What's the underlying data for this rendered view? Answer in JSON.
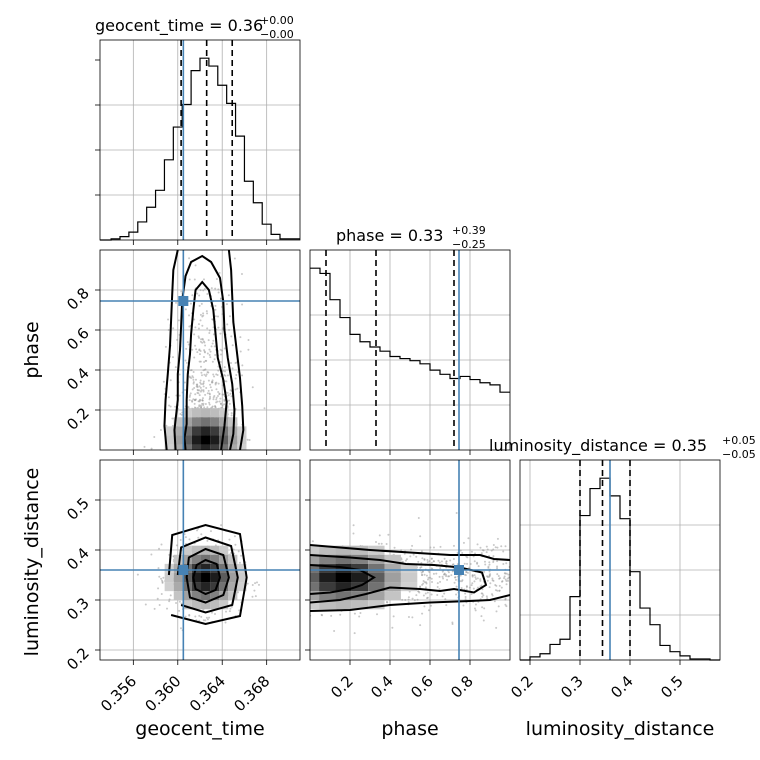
{
  "chart_data": {
    "type": "corner",
    "parameters": [
      "geocent_time",
      "phase",
      "luminosity_distance"
    ],
    "truths": {
      "geocent_time": 0.3605,
      "phase": 0.745,
      "luminosity_distance": 0.36
    },
    "colors": {
      "truth": "#4682b4",
      "hist": "#000000",
      "grid": "#b0b0b0"
    },
    "grid": true,
    "diagonal": [
      {
        "param": "geocent_time",
        "title_prefix": "geocent_time = ",
        "median": "0.36",
        "plus": "+0.00",
        "minus": "−0.00",
        "quantiles": [
          0.3603,
          0.3626,
          0.3649
        ],
        "range": [
          0.353,
          0.371
        ],
        "ticks": [
          0.356,
          0.36,
          0.364,
          0.368
        ],
        "tick_labels": [
          "0.356",
          "0.360",
          "0.364",
          "0.368"
        ],
        "bin_edges": [
          0.353,
          0.354,
          0.3548,
          0.3556,
          0.3564,
          0.3572,
          0.358,
          0.3588,
          0.3596,
          0.3604,
          0.3612,
          0.362,
          0.3628,
          0.3636,
          0.3644,
          0.3652,
          0.366,
          0.3668,
          0.3676,
          0.3684,
          0.3692,
          0.371
        ],
        "counts": [
          0,
          1,
          3,
          7,
          16,
          29,
          44,
          71,
          100,
          120,
          150,
          161,
          154,
          137,
          121,
          92,
          52,
          33,
          14,
          5,
          1
        ]
      },
      {
        "param": "phase",
        "title_prefix": "phase = ",
        "median": "0.33",
        "plus": "+0.39",
        "minus": "−0.25",
        "quantiles": [
          0.08,
          0.33,
          0.72
        ],
        "range": [
          0.0,
          1.0
        ],
        "ticks": [
          0.2,
          0.4,
          0.6,
          0.8
        ],
        "tick_labels": [
          "0.2",
          "0.4",
          "0.6",
          "0.8"
        ],
        "bin_edges": [
          0.0,
          0.05,
          0.1,
          0.15,
          0.2,
          0.25,
          0.3,
          0.35,
          0.4,
          0.45,
          0.5,
          0.55,
          0.6,
          0.65,
          0.7,
          0.75,
          0.8,
          0.85,
          0.9,
          0.95,
          1.0
        ],
        "counts": [
          173,
          168,
          143,
          126,
          110,
          103,
          98,
          94,
          89,
          87,
          85,
          82,
          76,
          72,
          68,
          70,
          67,
          64,
          62,
          55
        ]
      },
      {
        "param": "luminosity_distance",
        "title_prefix": "luminosity_distance = ",
        "median": "0.35",
        "plus": "+0.05",
        "minus": "−0.05",
        "quantiles": [
          0.3,
          0.345,
          0.4
        ],
        "range": [
          0.18,
          0.58
        ],
        "ticks": [
          0.2,
          0.3,
          0.4,
          0.5
        ],
        "tick_labels": [
          "0.2",
          "0.3",
          "0.4",
          "0.5"
        ],
        "bin_edges": [
          0.18,
          0.2,
          0.22,
          0.24,
          0.26,
          0.28,
          0.3,
          0.32,
          0.34,
          0.36,
          0.38,
          0.4,
          0.42,
          0.44,
          0.46,
          0.48,
          0.5,
          0.52,
          0.54,
          0.56,
          0.58
        ],
        "counts": [
          0,
          3,
          6,
          15,
          20,
          61,
          139,
          165,
          175,
          158,
          136,
          85,
          50,
          34,
          14,
          8,
          4,
          1,
          1,
          0
        ]
      }
    ],
    "off_diagonal": [
      {
        "x": "geocent_time",
        "y": "phase",
        "y_range": [
          0.0,
          1.0
        ],
        "y_ticks": [
          0.2,
          0.4,
          0.6,
          0.8
        ],
        "y_tick_labels": [
          "0.2",
          "0.4",
          "0.6",
          "0.8"
        ],
        "density_center": [
          0.3625,
          0.05
        ],
        "contours": [
          [
            [
              0.3607,
              0.0
            ],
            [
              0.3606,
              0.06
            ],
            [
              0.3608,
              0.13
            ],
            [
              0.3608,
              0.25
            ],
            [
              0.3609,
              0.38
            ],
            [
              0.3611,
              0.48
            ],
            [
              0.3612,
              0.58
            ],
            [
              0.3614,
              0.7
            ],
            [
              0.3616,
              0.8
            ],
            [
              0.3622,
              0.84
            ],
            [
              0.3628,
              0.8
            ],
            [
              0.3632,
              0.7
            ],
            [
              0.3634,
              0.58
            ],
            [
              0.3636,
              0.46
            ],
            [
              0.3641,
              0.35
            ],
            [
              0.3644,
              0.24
            ],
            [
              0.3642,
              0.12
            ],
            [
              0.3639,
              0.0
            ]
          ],
          [
            [
              0.3598,
              0.0
            ],
            [
              0.3597,
              0.1
            ],
            [
              0.36,
              0.25
            ],
            [
              0.36,
              0.38
            ],
            [
              0.3602,
              0.5
            ],
            [
              0.3603,
              0.62
            ],
            [
              0.3604,
              0.75
            ],
            [
              0.3607,
              0.87
            ],
            [
              0.3612,
              0.94
            ],
            [
              0.3622,
              0.97
            ],
            [
              0.363,
              0.94
            ],
            [
              0.3638,
              0.86
            ],
            [
              0.3641,
              0.74
            ],
            [
              0.3642,
              0.6
            ],
            [
              0.3645,
              0.46
            ],
            [
              0.3649,
              0.33
            ],
            [
              0.3651,
              0.2
            ],
            [
              0.365,
              0.08
            ],
            [
              0.3647,
              0.0
            ]
          ],
          [
            [
              0.359,
              0.0
            ],
            [
              0.3588,
              0.12
            ],
            [
              0.3589,
              0.25
            ],
            [
              0.3591,
              0.38
            ],
            [
              0.3593,
              0.52
            ],
            [
              0.3594,
              0.65
            ],
            [
              0.3595,
              0.78
            ],
            [
              0.3596,
              0.9
            ],
            [
              0.36,
              1.0
            ]
          ],
          [
            [
              0.3646,
              1.0
            ],
            [
              0.3648,
              0.9
            ],
            [
              0.3649,
              0.77
            ],
            [
              0.365,
              0.64
            ],
            [
              0.3653,
              0.5
            ],
            [
              0.3656,
              0.36
            ],
            [
              0.3658,
              0.22
            ],
            [
              0.3659,
              0.1
            ],
            [
              0.3656,
              0.0
            ]
          ]
        ]
      },
      {
        "x": "geocent_time",
        "y": "luminosity_distance",
        "y_range": [
          0.18,
          0.58
        ],
        "y_ticks": [
          0.2,
          0.3,
          0.4,
          0.5
        ],
        "y_tick_labels": [
          "0.2",
          "0.3",
          "0.4",
          "0.5"
        ],
        "density_center": [
          0.3625,
          0.345
        ],
        "contours": [
          [
            [
              0.3614,
              0.345
            ],
            [
              0.3617,
              0.37
            ],
            [
              0.3625,
              0.38
            ],
            [
              0.3635,
              0.372
            ],
            [
              0.3638,
              0.345
            ],
            [
              0.3634,
              0.32
            ],
            [
              0.3625,
              0.312
            ],
            [
              0.3616,
              0.322
            ]
          ],
          [
            [
              0.3608,
              0.345
            ],
            [
              0.361,
              0.385
            ],
            [
              0.3625,
              0.402
            ],
            [
              0.3641,
              0.39
            ],
            [
              0.3646,
              0.345
            ],
            [
              0.3641,
              0.31
            ],
            [
              0.3625,
              0.295
            ],
            [
              0.3611,
              0.305
            ]
          ],
          [
            [
              0.36,
              0.35
            ],
            [
              0.3603,
              0.405
            ],
            [
              0.3625,
              0.425
            ],
            [
              0.3648,
              0.408
            ],
            [
              0.3654,
              0.345
            ],
            [
              0.3649,
              0.29
            ],
            [
              0.3625,
              0.275
            ],
            [
              0.3603,
              0.29
            ]
          ],
          [
            [
              0.3592,
              0.35
            ],
            [
              0.3595,
              0.43
            ],
            [
              0.3625,
              0.45
            ],
            [
              0.3656,
              0.432
            ],
            [
              0.3662,
              0.345
            ],
            [
              0.3656,
              0.268
            ],
            [
              0.3625,
              0.252
            ],
            [
              0.3594,
              0.27
            ]
          ]
        ]
      },
      {
        "x": "phase",
        "y": "luminosity_distance",
        "density_center": [
          0.15,
          0.345
        ],
        "contours": [
          [
            [
              0.0,
              0.312
            ],
            [
              0.1,
              0.315
            ],
            [
              0.2,
              0.322
            ],
            [
              0.26,
              0.33
            ],
            [
              0.32,
              0.345
            ],
            [
              0.25,
              0.36
            ],
            [
              0.15,
              0.366
            ],
            [
              0.0,
              0.37
            ]
          ],
          [
            [
              0.0,
              0.295
            ],
            [
              0.15,
              0.3
            ],
            [
              0.28,
              0.312
            ],
            [
              0.4,
              0.325
            ],
            [
              0.55,
              0.322
            ],
            [
              0.65,
              0.318
            ],
            [
              0.72,
              0.322
            ],
            [
              0.82,
              0.315
            ],
            [
              0.88,
              0.33
            ],
            [
              0.86,
              0.355
            ],
            [
              0.75,
              0.365
            ],
            [
              0.62,
              0.37
            ],
            [
              0.48,
              0.372
            ],
            [
              0.35,
              0.38
            ],
            [
              0.2,
              0.385
            ],
            [
              0.0,
              0.39
            ]
          ],
          [
            [
              0.0,
              0.278
            ],
            [
              0.2,
              0.28
            ],
            [
              0.4,
              0.29
            ],
            [
              0.6,
              0.295
            ],
            [
              0.8,
              0.298
            ],
            [
              0.9,
              0.3
            ],
            [
              1.0,
              0.31
            ]
          ],
          [
            [
              1.0,
              0.38
            ],
            [
              0.92,
              0.382
            ],
            [
              0.85,
              0.39
            ],
            [
              0.7,
              0.39
            ],
            [
              0.5,
              0.395
            ],
            [
              0.3,
              0.4
            ],
            [
              0.15,
              0.405
            ],
            [
              0.0,
              0.41
            ]
          ]
        ]
      }
    ]
  }
}
